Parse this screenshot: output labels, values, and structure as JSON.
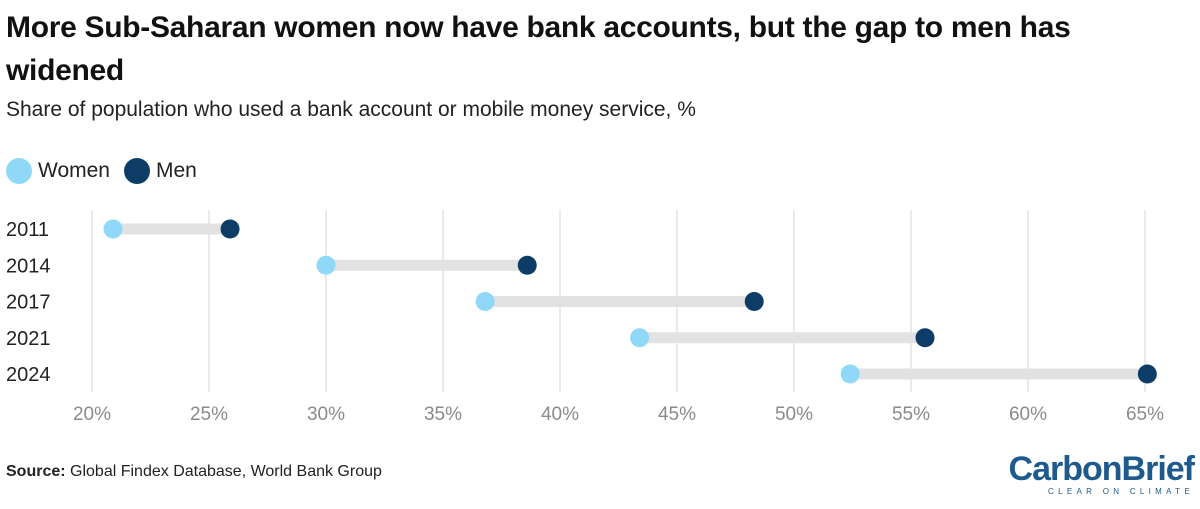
{
  "title": "More Sub-Saharan women now have bank accounts, but the gap to men has widened",
  "subtitle": "Share of population who used a bank account or mobile money service, %",
  "legend": {
    "women": "Women",
    "men": "Men"
  },
  "colors": {
    "women": "#8fd8f8",
    "men": "#0d3d66",
    "connector": "#e2e2e2",
    "grid": "#dddddd"
  },
  "source": {
    "label": "Source:",
    "text": "Global Findex Database, World Bank Group"
  },
  "logo": {
    "name": "CarbonBrief",
    "tagline": "CLEAR ON CLIMATE"
  },
  "chart_data": {
    "type": "dumbbell",
    "categories": [
      "2011",
      "2014",
      "2017",
      "2021",
      "2024"
    ],
    "series": [
      {
        "name": "Women",
        "values": [
          20.9,
          30.0,
          36.8,
          43.4,
          52.4
        ]
      },
      {
        "name": "Men",
        "values": [
          25.9,
          38.6,
          48.3,
          55.6,
          65.1
        ]
      }
    ],
    "xlim": [
      20,
      65
    ],
    "xticks": [
      20,
      25,
      30,
      35,
      40,
      45,
      50,
      55,
      60,
      65
    ],
    "xtick_labels": [
      "20%",
      "25%",
      "30%",
      "35%",
      "40%",
      "45%",
      "50%",
      "55%",
      "60%",
      "65%"
    ],
    "grid": "vertical",
    "legend_position": "top-left"
  }
}
